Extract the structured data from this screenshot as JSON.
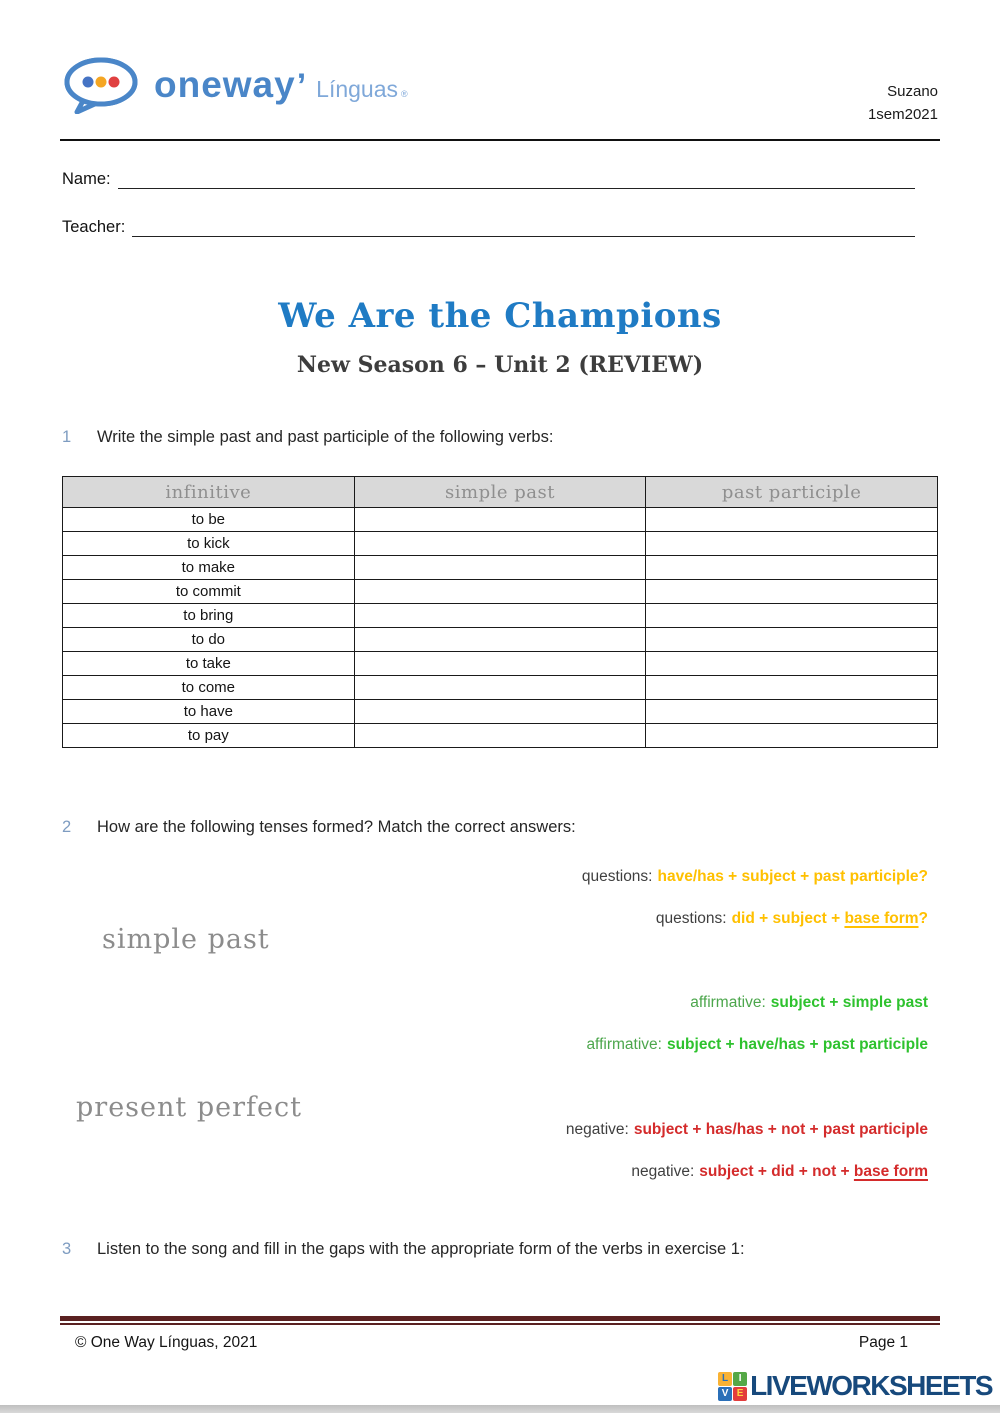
{
  "colors": {
    "brand_blue": "#4A86C8",
    "brand_light_blue": "#7FA8D9",
    "title_blue": "#1F7BC4",
    "number_blue": "#7E9CC1",
    "gray_heading": "#8C8C8C",
    "table_header_bg": "#D9D9D9",
    "table_header_text": "#8F8F8F",
    "gold": "#FFC000",
    "green": "#2EC22E",
    "green_label": "#4CA64C",
    "red": "#D42B2B",
    "maroon": "#5A2121",
    "navy": "#17497C"
  },
  "brand": {
    "word": "oneway",
    "mark": "’",
    "sub": "Línguas",
    "reg": "®"
  },
  "header": {
    "location": "Suzano",
    "term": "1sem2021"
  },
  "fields": {
    "name_label": "Name:",
    "teacher_label": "Teacher:"
  },
  "title": "We Are the Champions",
  "subtitle": "New Season 6 – Unit 2 (REVIEW)",
  "exercise1": {
    "num": "1",
    "prompt": "Write the simple past and past participle of the following verbs:"
  },
  "exercise2": {
    "num": "2",
    "prompt": "How are the following tenses formed? Match the correct answers:"
  },
  "exercise3": {
    "num": "3",
    "prompt": "Listen to the song and fill in the gaps with the appropriate form of the verbs in exercise 1:"
  },
  "table": {
    "headers": [
      "infinitive",
      "simple past",
      "past participle"
    ],
    "rows": [
      "to be",
      "to kick",
      "to make",
      "to commit",
      "to bring",
      "to do",
      "to take",
      "to come",
      "to have",
      "to pay"
    ]
  },
  "matching": {
    "labels": [
      {
        "text": "simple past"
      },
      {
        "text": "present perfect"
      }
    ],
    "options": [
      {
        "label": "questions:",
        "pre": "have/has + subject + past participle?",
        "underlined": "",
        "post": ""
      },
      {
        "label": "questions:",
        "pre": "did + subject + ",
        "underlined": "base form",
        "post": "?"
      },
      {
        "label": "affirmative:",
        "pre": "subject + simple past",
        "underlined": "",
        "post": ""
      },
      {
        "label": "affirmative:",
        "pre": "subject + have/has + past participle",
        "underlined": "",
        "post": ""
      },
      {
        "label": "negative:",
        "pre": "subject + has/has + not + past participle",
        "underlined": "",
        "post": ""
      },
      {
        "label": "negative:",
        "pre": "subject + did + not + ",
        "underlined": "base form",
        "post": ""
      }
    ]
  },
  "footer": {
    "copyright": "© One Way Línguas, 2021",
    "page": "Page 1"
  },
  "liveworksheets": {
    "text": "LIVEWORKSHEETS",
    "tiles": [
      {
        "letter": "L",
        "bg": "#F9B234",
        "fg": "#2A6FB8"
      },
      {
        "letter": "I",
        "bg": "#55A846",
        "fg": "#FFFFFF"
      },
      {
        "letter": "V",
        "bg": "#2A6FB8",
        "fg": "#FFFFFF"
      },
      {
        "letter": "E",
        "bg": "#E23C3C",
        "fg": "#FFD23F"
      }
    ]
  }
}
